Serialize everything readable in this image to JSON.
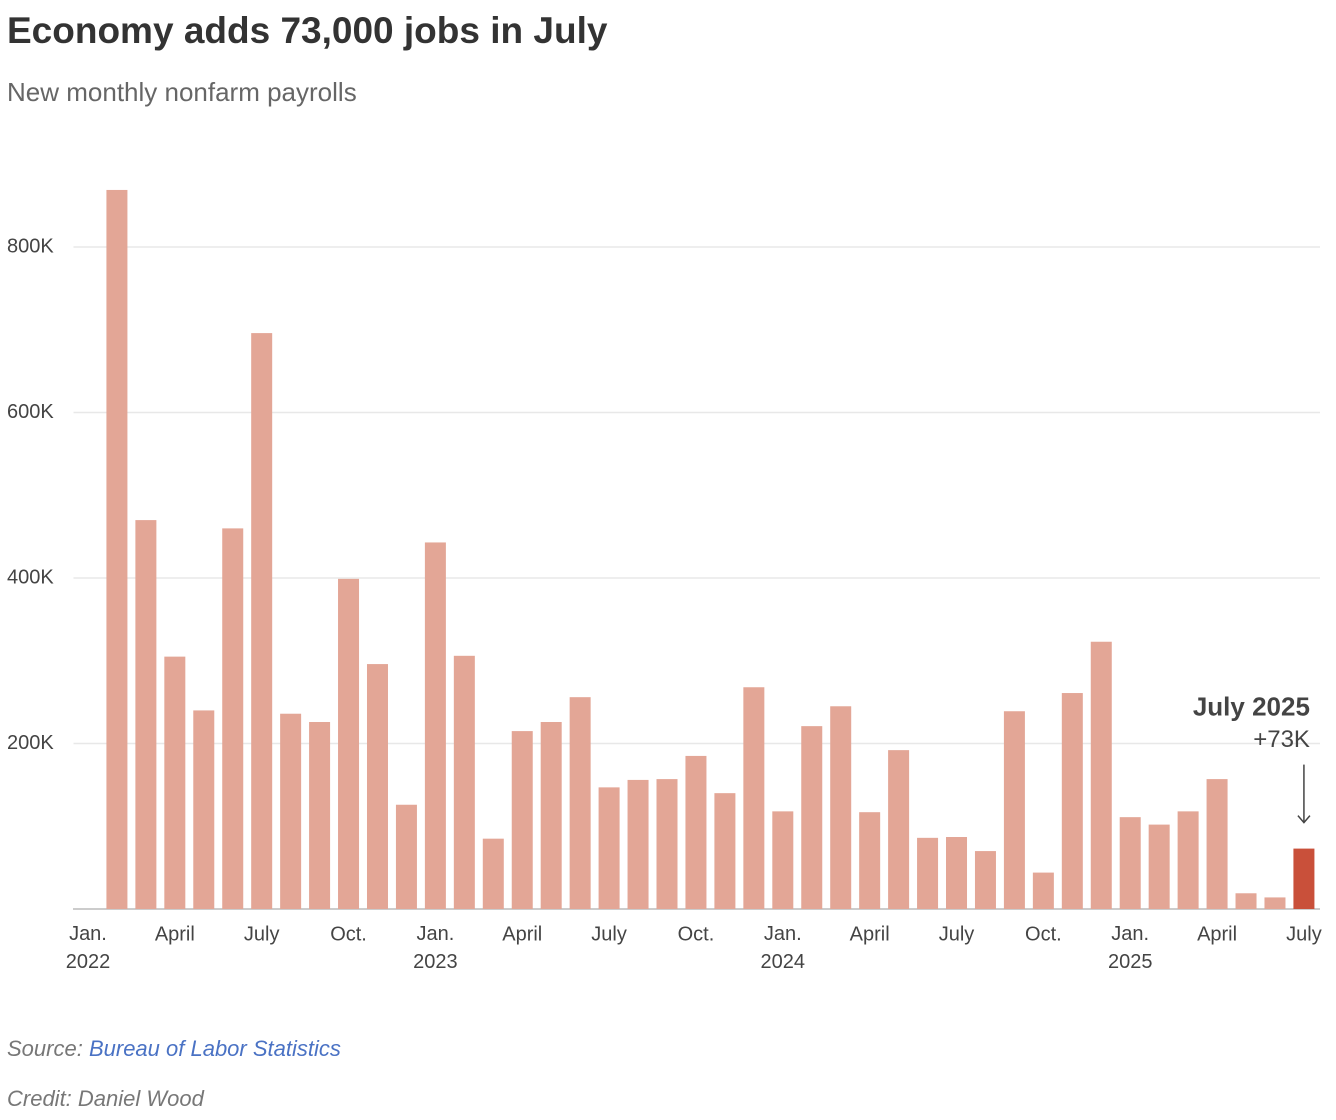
{
  "chart_data": {
    "type": "bar",
    "title": "Economy adds 73,000 jobs in July",
    "subtitle": "New monthly nonfarm payrolls",
    "categories": [
      "Jan. 2022",
      null,
      null,
      "April",
      null,
      null,
      "July",
      null,
      null,
      "Oct.",
      null,
      null,
      "Jan. 2023",
      null,
      null,
      "April",
      null,
      null,
      "July",
      null,
      null,
      "Oct.",
      null,
      null,
      "Jan. 2024",
      null,
      null,
      "April",
      null,
      null,
      "July",
      null,
      null,
      "Oct.",
      null,
      null,
      "Jan. 2025",
      null,
      null,
      "April",
      null,
      null,
      "July"
    ],
    "values": [
      null,
      869000,
      470000,
      305000,
      240000,
      460000,
      696000,
      236000,
      226000,
      399000,
      296000,
      126000,
      443000,
      306000,
      85000,
      215000,
      226000,
      256000,
      147000,
      156000,
      157000,
      185000,
      140000,
      268000,
      118000,
      221000,
      245000,
      117000,
      192000,
      86000,
      87000,
      70000,
      239000,
      44000,
      261000,
      323000,
      111000,
      102000,
      118000,
      157000,
      19000,
      14000,
      73000
    ],
    "value_labels": [
      null,
      null,
      null,
      null,
      null,
      null,
      null,
      null,
      null,
      null,
      null,
      null,
      null,
      null,
      null,
      null,
      null,
      null,
      null,
      null,
      null,
      null,
      null,
      null,
      null,
      null,
      null,
      null,
      null,
      null,
      null,
      null,
      null,
      null,
      null,
      null,
      null,
      null,
      null,
      null,
      null,
      null,
      "+73K"
    ],
    "annotation": "July 2025",
    "color": "#e3a696",
    "highlight_color": "#c9503a",
    "ylim": [
      0,
      900000
    ],
    "yticks": [
      {
        "value": 200000,
        "label": "200K"
      },
      {
        "value": 400000,
        "label": "400K"
      },
      {
        "value": 600000,
        "label": "600K"
      },
      {
        "value": 800000,
        "label": "800K"
      }
    ],
    "grid": true,
    "source_label": "Source:",
    "source": "Bureau of Labor Statistics",
    "credit": "Credit: Daniel Wood"
  }
}
